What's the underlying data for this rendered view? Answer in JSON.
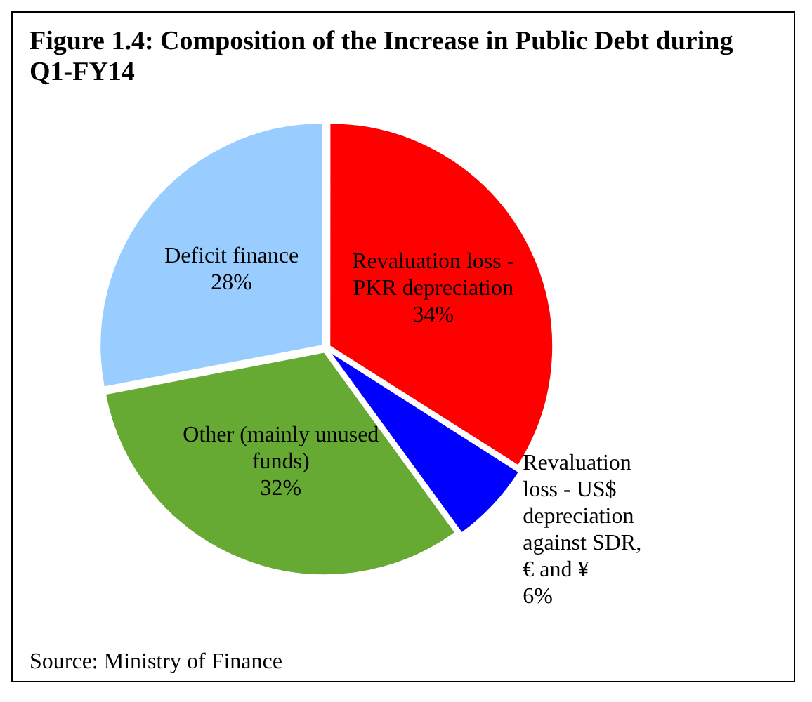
{
  "chart_data": {
    "type": "pie",
    "title": "Figure 1.4: Composition of the Increase in Public Debt during Q1-FY14",
    "categories": [
      "Revaluation loss - PKR depreciation",
      "Revaluation loss - US$ depreciation against SDR, € and ¥",
      "Other (mainly unused funds)",
      "Deficit finance"
    ],
    "values": [
      34,
      6,
      32,
      28
    ],
    "colors": [
      "#ff0000",
      "#0000ff",
      "#66aa33",
      "#99ccff"
    ],
    "value_labels": [
      "34%",
      "6%",
      "32%",
      "28%"
    ],
    "legend": false,
    "annotations": [
      "Source: Ministry of Finance"
    ]
  }
}
